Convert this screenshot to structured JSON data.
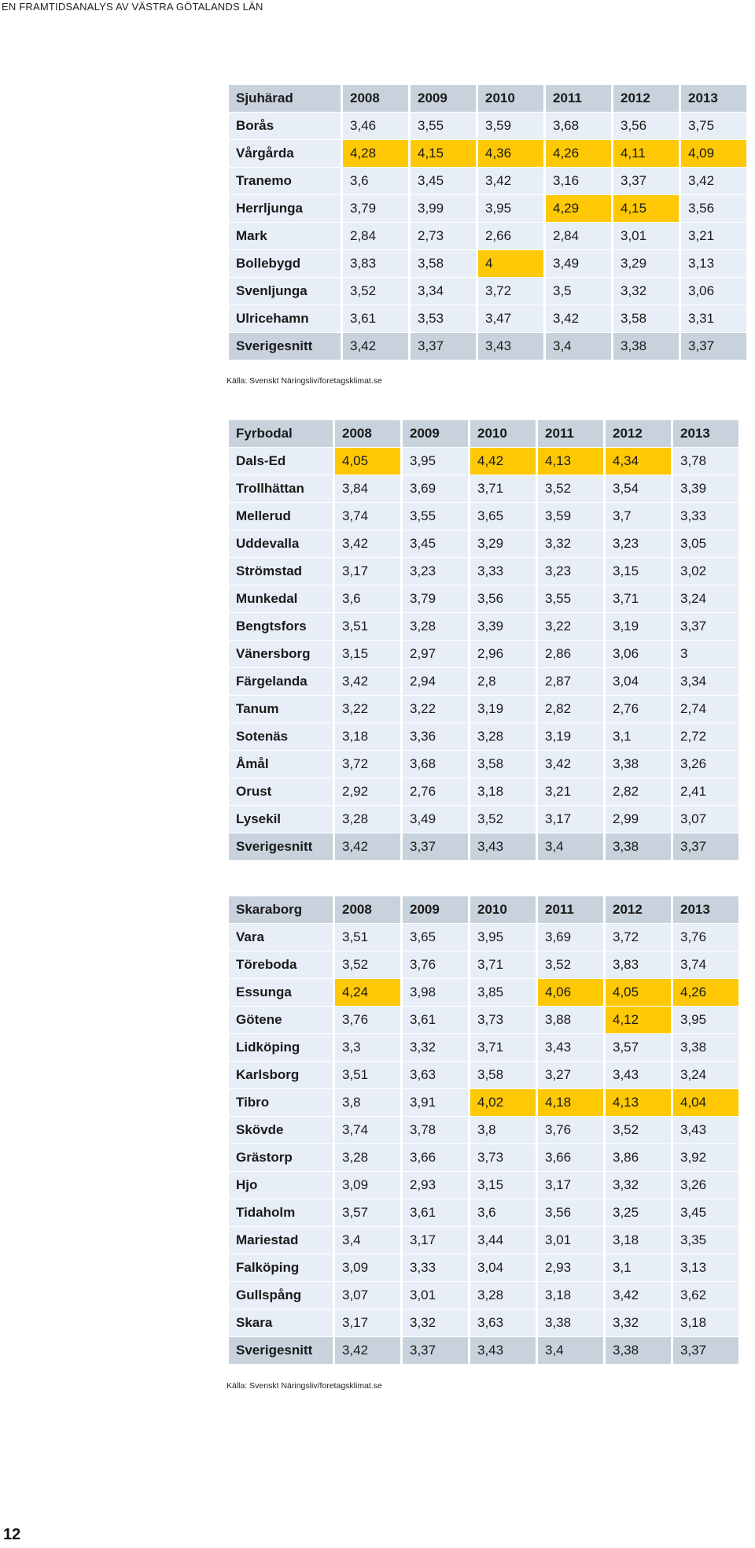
{
  "page": {
    "running_head": "EN FRAMTIDSANALYS AV VÄSTRA GÖTALANDS LÄN",
    "page_number": "12"
  },
  "tables": [
    {
      "header": [
        "Sjuhärad",
        "2008",
        "2009",
        "2010",
        "2011",
        "2012",
        "2013"
      ],
      "rows": [
        {
          "name": "Borås",
          "values": [
            "3,46",
            "3,55",
            "3,59",
            "3,68",
            "3,56",
            "3,75"
          ],
          "highlight": []
        },
        {
          "name": "Vårgårda",
          "values": [
            "4,28",
            "4,15",
            "4,36",
            "4,26",
            "4,11",
            "4,09"
          ],
          "highlight": [
            0,
            1,
            2,
            3,
            4,
            5
          ]
        },
        {
          "name": "Tranemo",
          "values": [
            "3,6",
            "3,45",
            "3,42",
            "3,16",
            "3,37",
            "3,42"
          ],
          "highlight": []
        },
        {
          "name": "Herrljunga",
          "values": [
            "3,79",
            "3,99",
            "3,95",
            "4,29",
            "4,15",
            "3,56"
          ],
          "highlight": [
            3,
            4
          ]
        },
        {
          "name": "Mark",
          "values": [
            "2,84",
            "2,73",
            "2,66",
            "2,84",
            "3,01",
            "3,21"
          ],
          "highlight": []
        },
        {
          "name": "Bollebygd",
          "values": [
            "3,83",
            "3,58",
            "4",
            "3,49",
            "3,29",
            "3,13"
          ],
          "highlight": [
            2
          ]
        },
        {
          "name": "Svenljunga",
          "values": [
            "3,52",
            "3,34",
            "3,72",
            "3,5",
            "3,32",
            "3,06"
          ],
          "highlight": []
        },
        {
          "name": "Ulricehamn",
          "values": [
            "3,61",
            "3,53",
            "3,47",
            "3,42",
            "3,58",
            "3,31"
          ],
          "highlight": []
        }
      ],
      "average": {
        "name": "Sverigesnitt",
        "values": [
          "3,42",
          "3,37",
          "3,43",
          "3,4",
          "3,38",
          "3,37"
        ]
      },
      "source": "Källa: Svenskt Näringsliv/foretagsklimat.se"
    },
    {
      "header": [
        "Fyrbodal",
        "2008",
        "2009",
        "2010",
        "2011",
        "2012",
        "2013"
      ],
      "rows": [
        {
          "name": "Dals-Ed",
          "values": [
            "4,05",
            "3,95",
            "4,42",
            "4,13",
            "4,34",
            "3,78"
          ],
          "highlight": [
            0,
            2,
            3,
            4
          ]
        },
        {
          "name": "Trollhättan",
          "values": [
            "3,84",
            "3,69",
            "3,71",
            "3,52",
            "3,54",
            "3,39"
          ],
          "highlight": []
        },
        {
          "name": "Mellerud",
          "values": [
            "3,74",
            "3,55",
            "3,65",
            "3,59",
            "3,7",
            "3,33"
          ],
          "highlight": []
        },
        {
          "name": "Uddevalla",
          "values": [
            "3,42",
            "3,45",
            "3,29",
            "3,32",
            "3,23",
            "3,05"
          ],
          "highlight": []
        },
        {
          "name": "Strömstad",
          "values": [
            "3,17",
            "3,23",
            "3,33",
            "3,23",
            "3,15",
            "3,02"
          ],
          "highlight": []
        },
        {
          "name": "Munkedal",
          "values": [
            "3,6",
            "3,79",
            "3,56",
            "3,55",
            "3,71",
            "3,24"
          ],
          "highlight": []
        },
        {
          "name": "Bengtsfors",
          "values": [
            "3,51",
            "3,28",
            "3,39",
            "3,22",
            "3,19",
            "3,37"
          ],
          "highlight": []
        },
        {
          "name": "Vänersborg",
          "values": [
            "3,15",
            "2,97",
            "2,96",
            "2,86",
            "3,06",
            "3"
          ],
          "highlight": []
        },
        {
          "name": "Färgelanda",
          "values": [
            "3,42",
            "2,94",
            "2,8",
            "2,87",
            "3,04",
            "3,34"
          ],
          "highlight": []
        },
        {
          "name": "Tanum",
          "values": [
            "3,22",
            "3,22",
            "3,19",
            "2,82",
            "2,76",
            "2,74"
          ],
          "highlight": []
        },
        {
          "name": "Sotenäs",
          "values": [
            "3,18",
            "3,36",
            "3,28",
            "3,19",
            "3,1",
            "2,72"
          ],
          "highlight": []
        },
        {
          "name": "Åmål",
          "values": [
            "3,72",
            "3,68",
            "3,58",
            "3,42",
            "3,38",
            "3,26"
          ],
          "highlight": []
        },
        {
          "name": "Orust",
          "values": [
            "2,92",
            "2,76",
            "3,18",
            "3,21",
            "2,82",
            "2,41"
          ],
          "highlight": []
        },
        {
          "name": "Lysekil",
          "values": [
            "3,28",
            "3,49",
            "3,52",
            "3,17",
            "2,99",
            "3,07"
          ],
          "highlight": []
        }
      ],
      "average": {
        "name": "Sverigesnitt",
        "values": [
          "3,42",
          "3,37",
          "3,43",
          "3,4",
          "3,38",
          "3,37"
        ]
      },
      "source": ""
    },
    {
      "header": [
        "Skaraborg",
        "2008",
        "2009",
        "2010",
        "2011",
        "2012",
        "2013"
      ],
      "rows": [
        {
          "name": "Vara",
          "values": [
            "3,51",
            "3,65",
            "3,95",
            "3,69",
            "3,72",
            "3,76"
          ],
          "highlight": []
        },
        {
          "name": "Töreboda",
          "values": [
            "3,52",
            "3,76",
            "3,71",
            "3,52",
            "3,83",
            "3,74"
          ],
          "highlight": []
        },
        {
          "name": "Essunga",
          "values": [
            "4,24",
            "3,98",
            "3,85",
            "4,06",
            "4,05",
            "4,26"
          ],
          "highlight": [
            0,
            3,
            4,
            5
          ]
        },
        {
          "name": "Götene",
          "values": [
            "3,76",
            "3,61",
            "3,73",
            "3,88",
            "4,12",
            "3,95"
          ],
          "highlight": [
            4
          ]
        },
        {
          "name": "Lidköping",
          "values": [
            "3,3",
            "3,32",
            "3,71",
            "3,43",
            "3,57",
            "3,38"
          ],
          "highlight": []
        },
        {
          "name": "Karlsborg",
          "values": [
            "3,51",
            "3,63",
            "3,58",
            "3,27",
            "3,43",
            "3,24"
          ],
          "highlight": []
        },
        {
          "name": "Tibro",
          "values": [
            "3,8",
            "3,91",
            "4,02",
            "4,18",
            "4,13",
            "4,04"
          ],
          "highlight": [
            2,
            3,
            4,
            5
          ]
        },
        {
          "name": "Skövde",
          "values": [
            "3,74",
            "3,78",
            "3,8",
            "3,76",
            "3,52",
            "3,43"
          ],
          "highlight": []
        },
        {
          "name": "Grästorp",
          "values": [
            "3,28",
            "3,66",
            "3,73",
            "3,66",
            "3,86",
            "3,92"
          ],
          "highlight": []
        },
        {
          "name": "Hjo",
          "values": [
            "3,09",
            "2,93",
            "3,15",
            "3,17",
            "3,32",
            "3,26"
          ],
          "highlight": []
        },
        {
          "name": "Tidaholm",
          "values": [
            "3,57",
            "3,61",
            "3,6",
            "3,56",
            "3,25",
            "3,45"
          ],
          "highlight": []
        },
        {
          "name": "Mariestad",
          "values": [
            "3,4",
            "3,17",
            "3,44",
            "3,01",
            "3,18",
            "3,35"
          ],
          "highlight": []
        },
        {
          "name": "Falköping",
          "values": [
            "3,09",
            "3,33",
            "3,04",
            "2,93",
            "3,1",
            "3,13"
          ],
          "highlight": []
        },
        {
          "name": "Gullspång",
          "values": [
            "3,07",
            "3,01",
            "3,28",
            "3,18",
            "3,42",
            "3,62"
          ],
          "highlight": []
        },
        {
          "name": "Skara",
          "values": [
            "3,17",
            "3,32",
            "3,63",
            "3,38",
            "3,32",
            "3,18"
          ],
          "highlight": []
        }
      ],
      "average": {
        "name": "Sverigesnitt",
        "values": [
          "3,42",
          "3,37",
          "3,43",
          "3,4",
          "3,38",
          "3,37"
        ]
      },
      "source": "Källa: Svenskt Näringsliv/foretagsklimat.se"
    }
  ],
  "colors": {
    "highlight": "#fec805",
    "header_bg": "#c8d2dc",
    "row_bg": "#e8eef7"
  }
}
